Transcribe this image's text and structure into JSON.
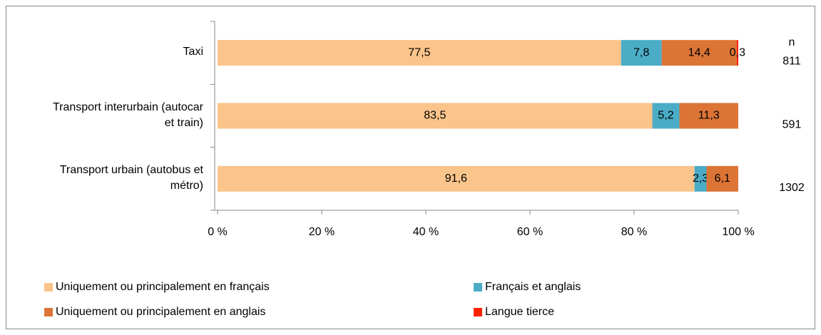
{
  "chart_data": {
    "type": "stacked-bar-horizontal",
    "categories": [
      "Taxi",
      "Transport interurbain (autocar et train)",
      "Transport urbain (autobus et métro)"
    ],
    "series": [
      {
        "name": "Uniquement ou principalement en français",
        "color": "#fac48a",
        "values": [
          77.5,
          83.5,
          91.6
        ],
        "value_labels": [
          "77,5",
          "83,5",
          "91,6"
        ]
      },
      {
        "name": "Français et anglais",
        "color": "#4bacc6",
        "values": [
          7.8,
          5.2,
          2.3
        ],
        "value_labels": [
          "7,8",
          "5,2",
          "2,3"
        ]
      },
      {
        "name": "Uniquement ou principalement en anglais",
        "color": "#dc7436",
        "values": [
          14.4,
          11.3,
          6.1
        ],
        "value_labels": [
          "14,4",
          "11,3",
          "6,1"
        ]
      },
      {
        "name": "Langue tierce",
        "color": "#ff2200",
        "values": [
          0.3,
          null,
          null
        ],
        "value_labels": [
          "0,3",
          null,
          null
        ]
      }
    ],
    "xlim": [
      0,
      100
    ],
    "xticks": [
      {
        "value": 0,
        "label": "0 %"
      },
      {
        "value": 20,
        "label": "20 %"
      },
      {
        "value": 40,
        "label": "40 %"
      },
      {
        "value": 60,
        "label": "60 %"
      },
      {
        "value": 80,
        "label": "80 %"
      },
      {
        "value": 100,
        "label": "100 %"
      }
    ],
    "n_header": "n",
    "n_values": [
      811,
      591,
      1302
    ]
  }
}
